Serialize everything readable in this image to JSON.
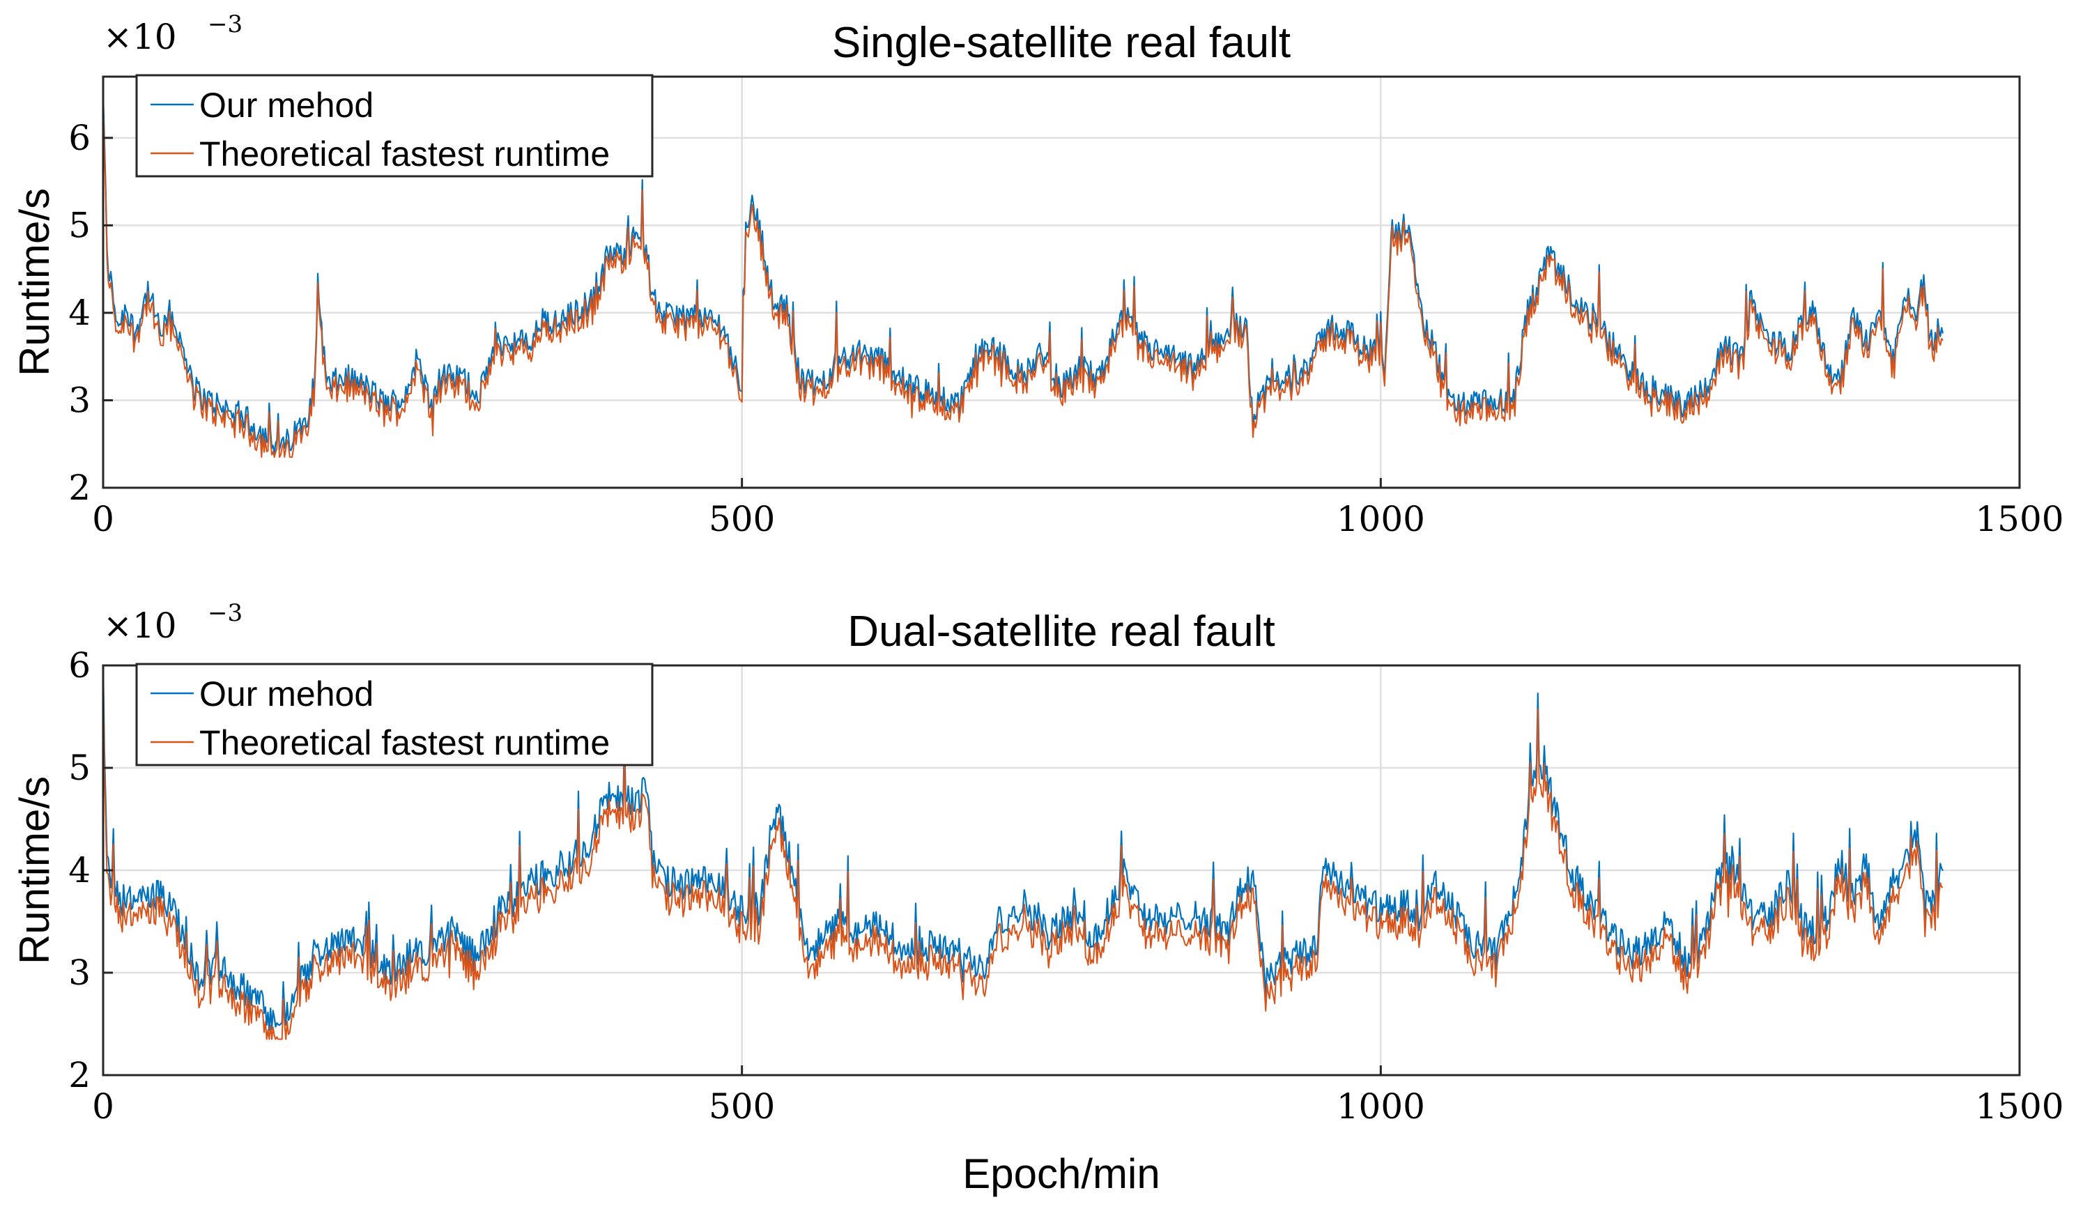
{
  "chart_data": [
    {
      "type": "line",
      "title": "Single-satellite real fault",
      "xlabel": "",
      "ylabel": "Runtime/s",
      "xlim": [
        0,
        1500
      ],
      "ylim": [
        2,
        6.7
      ],
      "xticks": [
        "0",
        "500",
        "1000",
        "1500"
      ],
      "yticks": [
        "2",
        "3",
        "4",
        "5",
        "6"
      ],
      "ytick_values": [
        2,
        3,
        4,
        5,
        6
      ],
      "xtick_values": [
        0,
        500,
        1000,
        1500
      ],
      "exponent_base": "×10",
      "exponent_power": "−3",
      "grid": true,
      "legend_position": "top-left",
      "series": [
        {
          "name": "Our mehod",
          "color": "#0072BD",
          "offset": 0.06,
          "x": [
            0,
            3,
            8,
            12,
            18,
            25,
            35,
            45,
            55,
            62,
            70,
            80,
            95,
            110,
            125,
            140,
            150,
            160,
            166,
            168,
            175,
            190,
            205,
            220,
            235,
            245,
            255,
            265,
            280,
            295,
            300,
            310,
            320,
            335,
            345,
            355,
            365,
            375,
            385,
            395,
            405,
            415,
            420,
            425,
            430,
            440,
            455,
            470,
            485,
            495,
            500,
            503,
            507,
            512,
            518,
            525,
            535,
            545,
            560,
            575,
            590,
            610,
            630,
            650,
            670,
            685,
            700,
            720,
            735,
            750,
            765,
            780,
            790,
            800,
            812,
            825,
            840,
            855,
            870,
            885,
            895,
            900,
            905,
            915,
            930,
            945,
            960,
            975,
            990,
            1000,
            1003,
            1008,
            1015,
            1020,
            1025,
            1030,
            1040,
            1055,
            1070,
            1090,
            1105,
            1115,
            1122,
            1130,
            1140,
            1155,
            1170,
            1185,
            1200,
            1220,
            1235,
            1245,
            1255,
            1270,
            1280,
            1290,
            1300,
            1310,
            1320,
            1330,
            1340,
            1350,
            1360,
            1370,
            1380,
            1390,
            1400,
            1410,
            1420,
            1425,
            1430,
            1440
          ],
          "values": [
            6.5,
            4.6,
            4.1,
            3.8,
            4.0,
            3.7,
            4.2,
            3.7,
            3.9,
            3.5,
            3.1,
            2.95,
            2.85,
            2.75,
            2.55,
            2.4,
            2.55,
            2.8,
            3.2,
            4.3,
            3.1,
            3.2,
            3.1,
            2.9,
            2.95,
            3.4,
            3.0,
            3.2,
            3.2,
            3.0,
            3.3,
            3.6,
            3.6,
            3.6,
            3.9,
            3.8,
            3.9,
            4.0,
            4.1,
            4.6,
            4.6,
            4.8,
            4.9,
            4.7,
            4.1,
            3.9,
            3.9,
            3.9,
            3.8,
            3.3,
            3.1,
            4.9,
            5.2,
            5.0,
            4.6,
            4.0,
            4.0,
            3.2,
            3.1,
            3.4,
            3.5,
            3.4,
            3.1,
            3.0,
            2.9,
            3.5,
            3.5,
            3.2,
            3.5,
            3.1,
            3.3,
            3.2,
            3.6,
            3.9,
            3.6,
            3.5,
            3.4,
            3.3,
            3.6,
            3.8,
            3.8,
            2.7,
            3.0,
            3.1,
            3.2,
            3.4,
            3.8,
            3.7,
            3.5,
            3.6,
            3.3,
            4.9,
            4.8,
            5.0,
            4.6,
            4.0,
            3.6,
            2.9,
            2.9,
            2.9,
            3.0,
            4.0,
            4.2,
            4.6,
            4.4,
            4.0,
            3.8,
            3.5,
            3.2,
            3.0,
            2.9,
            3.0,
            3.1,
            3.6,
            3.4,
            4.1,
            3.7,
            3.6,
            3.5,
            3.9,
            4.0,
            3.3,
            3.2,
            3.9,
            3.6,
            4.0,
            3.4,
            4.2,
            3.9,
            4.4,
            3.6,
            3.8
          ]
        },
        {
          "name": "Theoretical fastest runtime",
          "color": "#D95319",
          "offset": 0.0,
          "shift": -0.04
        }
      ]
    },
    {
      "type": "line",
      "title": "Dual-satellite real fault",
      "xlabel": "Epoch/min",
      "ylabel": "Runtime/s",
      "xlim": [
        0,
        1500
      ],
      "ylim": [
        2,
        6
      ],
      "xticks": [
        "0",
        "500",
        "1000",
        "1500"
      ],
      "yticks": [
        "2",
        "3",
        "4",
        "5",
        "6"
      ],
      "ytick_values": [
        2,
        3,
        4,
        5,
        6
      ],
      "xtick_values": [
        0,
        500,
        1000,
        1500
      ],
      "exponent_base": "×10",
      "exponent_power": "−3",
      "grid": true,
      "legend_position": "top-left",
      "series": [
        {
          "name": "Our mehod",
          "color": "#0072BD",
          "offset": 0.08,
          "x": [
            0,
            3,
            8,
            15,
            25,
            35,
            45,
            55,
            65,
            75,
            90,
            105,
            120,
            135,
            140,
            150,
            165,
            180,
            195,
            210,
            220,
            230,
            245,
            260,
            275,
            290,
            300,
            310,
            320,
            335,
            350,
            365,
            380,
            390,
            400,
            410,
            420,
            425,
            430,
            440,
            460,
            480,
            495,
            505,
            515,
            525,
            530,
            540,
            550,
            560,
            575,
            590,
            610,
            630,
            650,
            670,
            690,
            700,
            720,
            740,
            760,
            775,
            790,
            800,
            815,
            830,
            850,
            870,
            880,
            890,
            900,
            910,
            920,
            940,
            950,
            955,
            970,
            990,
            1010,
            1020,
            1030,
            1040,
            1055,
            1070,
            1090,
            1100,
            1110,
            1115,
            1120,
            1125,
            1130,
            1140,
            1150,
            1165,
            1180,
            1195,
            1210,
            1225,
            1240,
            1255,
            1265,
            1275,
            1290,
            1305,
            1320,
            1335,
            1350,
            1360,
            1370,
            1380,
            1390,
            1400,
            1410,
            1420,
            1425,
            1432,
            1440
          ],
          "values": [
            5.8,
            4.0,
            3.7,
            3.6,
            3.7,
            3.6,
            3.7,
            3.5,
            3.2,
            2.9,
            3.0,
            2.8,
            2.65,
            2.45,
            2.4,
            2.7,
            3.1,
            3.2,
            3.3,
            3.1,
            2.9,
            3.0,
            3.1,
            3.2,
            3.3,
            3.1,
            3.2,
            3.5,
            3.6,
            3.8,
            3.9,
            4.0,
            4.2,
            4.5,
            4.7,
            4.6,
            4.6,
            4.8,
            4.0,
            3.8,
            3.8,
            3.8,
            3.6,
            3.5,
            3.6,
            4.5,
            4.4,
            3.9,
            3.2,
            3.2,
            3.4,
            3.3,
            3.4,
            3.1,
            3.2,
            3.1,
            3.0,
            3.4,
            3.6,
            3.3,
            3.5,
            3.2,
            3.6,
            3.9,
            3.5,
            3.4,
            3.5,
            3.4,
            3.3,
            3.7,
            3.9,
            2.8,
            3.0,
            3.1,
            3.2,
            4.0,
            3.8,
            3.6,
            3.5,
            3.6,
            3.4,
            3.8,
            3.6,
            3.2,
            3.1,
            3.5,
            3.9,
            4.6,
            4.9,
            5.0,
            4.8,
            4.3,
            3.9,
            3.6,
            3.3,
            3.1,
            3.2,
            3.4,
            3.0,
            3.3,
            3.9,
            4.0,
            3.5,
            3.5,
            3.8,
            3.3,
            3.5,
            4.0,
            3.6,
            4.0,
            3.3,
            3.8,
            4.0,
            4.3,
            3.6,
            3.5,
            3.9
          ]
        },
        {
          "name": "Theoretical fastest runtime",
          "color": "#D95319",
          "offset": 0.0,
          "shift": -0.08
        }
      ]
    }
  ]
}
